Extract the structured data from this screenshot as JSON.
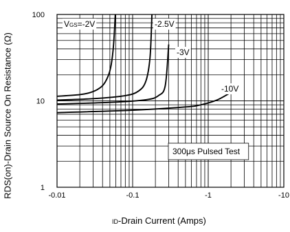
{
  "chart_data": {
    "type": "line",
    "xscale": "log",
    "yscale": "log",
    "xlim": [
      -0.01,
      -10
    ],
    "ylim": [
      1,
      100
    ],
    "grid": true,
    "x_ticks": [
      "-0.01",
      "-0.1",
      "-1",
      "-10"
    ],
    "y_ticks": [
      "1",
      "10",
      "100"
    ],
    "ylabel": "RDS(on)-Drain Source On Resistance  (Ω)",
    "xlabel_sub": "ID",
    "xlabel_main": "-Drain Current (Amps)",
    "annotation": "300μs Pulsed Test",
    "series": [
      {
        "name": "VGS=-2V",
        "x": [
          -0.01,
          -0.02,
          -0.03,
          -0.04,
          -0.047,
          -0.052,
          -0.056,
          -0.059
        ],
        "y": [
          11.3,
          11.8,
          12.8,
          15,
          19,
          26,
          45,
          100
        ]
      },
      {
        "name": "-2.5V",
        "x": [
          -0.01,
          -0.03,
          -0.08,
          -0.12,
          -0.15,
          -0.17,
          -0.18
        ],
        "y": [
          10.2,
          10.6,
          11.5,
          13,
          17,
          32,
          100
        ]
      },
      {
        "name": "-3V",
        "x": [
          -0.01,
          -0.05,
          -0.15,
          -0.22,
          -0.27,
          -0.3
        ],
        "y": [
          9.2,
          9.6,
          10.3,
          11.5,
          15,
          45
        ]
      },
      {
        "name": "-10V",
        "x": [
          -0.01,
          -0.1,
          -0.5,
          -0.8,
          -1.3,
          -1.9
        ],
        "y": [
          7.3,
          7.8,
          8.5,
          9,
          10.2,
          12.2
        ]
      }
    ]
  }
}
